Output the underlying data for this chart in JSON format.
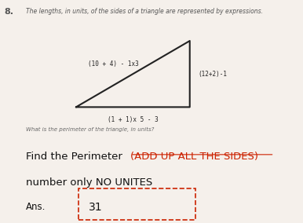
{
  "question_number": "8.",
  "title_text": "The lengths, in units, of the sides of a triangle are represented by expressions.",
  "side_labels": {
    "top": "(10 + 4) - 1x3",
    "right": "(12+2)-1",
    "bottom": "(1 + 1)x 5 - 3"
  },
  "question_text": "What is the perimeter of the triangle, in units?",
  "instruction_text1": "Find the Perimeter ",
  "instruction_highlight": "(ADD UP ALL THE SIDES)",
  "instruction_text2": "number only NO UNITES",
  "ans_label": "Ans.",
  "ans_value": "31",
  "bg_color": "#f5f0eb",
  "triangle_color": "#222222",
  "label_color": "#222222",
  "highlight_color": "#cc2200",
  "instruction_color": "#111111",
  "title_color": "#555555",
  "question_color": "#666666",
  "box_color": "#cc2200"
}
